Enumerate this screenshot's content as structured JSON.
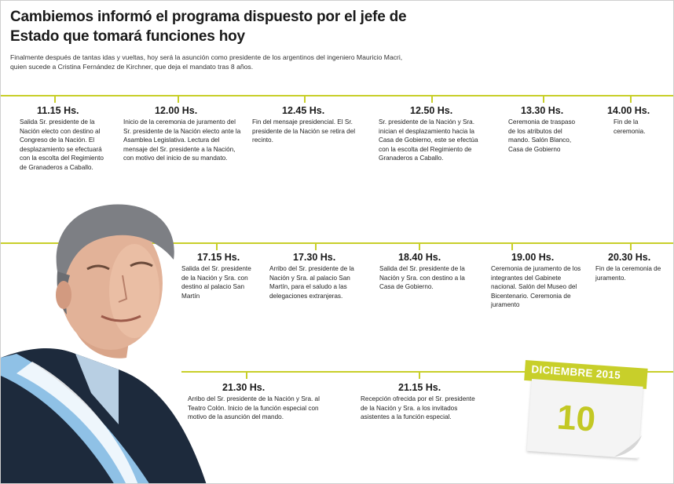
{
  "title": "Cambiemos informó el programa dispuesto por el jefe de Estado que tomará funciones hoy",
  "intro": "Finalmente después de tantas idas y vueltas, hoy será la asunción como presidente de los argentinos del ingeniero Mauricio Macri, quien sucede a Cristina Fernández de Kirchner, que deja el mandato tras 8 años.",
  "colors": {
    "accent": "#c8cf2a",
    "text": "#1e1e1e",
    "sash": "#8fc1e6",
    "suit": "#1d2a3c"
  },
  "events": [
    {
      "time": "11.15 Hs.",
      "desc": "Salida Sr. presidente de la Nación electo con destino al Congreso de la Nación. El desplazamiento se efectuará con la escolta del Regimiento de Granaderos a Caballo."
    },
    {
      "time": "12.00 Hs.",
      "desc": "Inicio de la ceremonia de juramento del Sr. presidente de la Nación electo ante la Asamblea Legislativa. Lectura del mensaje del Sr. presidente a la Nación, con motivo del inicio de su mandato."
    },
    {
      "time": "12.45 Hs.",
      "desc": "Fin del mensaje presidencial. El Sr. presidente de la Nación se retira del recinto."
    },
    {
      "time": "12.50 Hs.",
      "desc": "Sr. presidente de la Nación y Sra. inician el desplazamiento hacia la Casa de Gobierno, este se efectúa con la escolta del Regimiento de Granaderos a Caballo."
    },
    {
      "time": "13.30 Hs.",
      "desc": "Ceremonia de traspaso de los atributos del mando. Salón Blanco, Casa de Gobierno"
    },
    {
      "time": "14.00 Hs.",
      "desc": "Fin de la ceremonia."
    },
    {
      "time": "17.15 Hs.",
      "desc": "Salida del Sr. presidente de la Nación y Sra. con destino al palacio San Martín"
    },
    {
      "time": "17.30 Hs.",
      "desc": "Arribo del Sr. presidente de la Nación y Sra. al palacio San Martín, para el saludo a las delegaciones extranjeras."
    },
    {
      "time": "18.40 Hs.",
      "desc": "Salida del Sr. presidente de la Nación y Sra. con destino a la Casa de Gobierno."
    },
    {
      "time": "19.00 Hs.",
      "desc": "Ceremonia de juramento de los integrantes del Gabinete nacional. Salón del Museo del Bicentenario. Ceremonia de juramento"
    },
    {
      "time": "20.30 Hs.",
      "desc": "Fin de la ceremonia de juramento."
    },
    {
      "time": "21.30 Hs.",
      "desc": "Arribo del Sr. presidente de la Nación y Sra. al Teatro Colón. Inicio de la función especial con motivo de la asunción del mando."
    },
    {
      "time": "21.15 Hs.",
      "desc": "Recepción ofrecida por el Sr. presidente de la Nación y Sra. a los invitados asistentes a la función especial."
    }
  ],
  "calendar": {
    "month": "DICIEMBRE 2015",
    "day": "10"
  }
}
